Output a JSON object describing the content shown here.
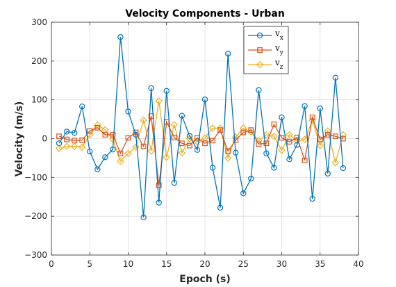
{
  "chart_data": {
    "type": "line",
    "title": "Velocity Components - Urban",
    "xlabel": "Epoch (s)",
    "ylabel": "Velocity (m/s)",
    "xlim": [
      0,
      40
    ],
    "ylim": [
      -300,
      300
    ],
    "xticks": [
      0,
      5,
      10,
      15,
      20,
      25,
      30,
      35,
      40
    ],
    "yticks": [
      -300,
      -200,
      -100,
      0,
      100,
      200,
      300
    ],
    "grid": true,
    "legend_position": "top-right",
    "x": [
      1,
      2,
      3,
      4,
      5,
      6,
      7,
      8,
      9,
      10,
      11,
      12,
      13,
      14,
      15,
      16,
      17,
      18,
      19,
      20,
      21,
      22,
      23,
      24,
      25,
      26,
      27,
      28,
      29,
      30,
      31,
      32,
      33,
      34,
      35,
      36,
      37,
      38
    ],
    "series": [
      {
        "name": "v",
        "subscript": "x",
        "color": "#0072BD",
        "marker": "circle",
        "values": [
          -12,
          18,
          15,
          83,
          -33,
          -79,
          -48,
          -28,
          262,
          70,
          10,
          -203,
          130,
          -165,
          123,
          -114,
          59,
          7,
          -29,
          101,
          -75,
          -178,
          219,
          -36,
          -141,
          -103,
          125,
          -38,
          -75,
          55,
          -53,
          -16,
          84,
          -155,
          78,
          -90,
          157,
          -76
        ]
      },
      {
        "name": "v",
        "subscript": "y",
        "color": "#D95319",
        "marker": "square",
        "values": [
          6,
          -2,
          -5,
          -4,
          20,
          28,
          10,
          10,
          -38,
          2,
          16,
          -20,
          58,
          -120,
          43,
          3,
          -12,
          -18,
          2,
          -12,
          -5,
          22,
          -32,
          -4,
          16,
          22,
          -14,
          -12,
          37,
          2,
          -8,
          3,
          -56,
          55,
          -2,
          10,
          6,
          0
        ]
      },
      {
        "name": "v",
        "subscript": "z",
        "color": "#EDB120",
        "marker": "diamond",
        "values": [
          -25,
          -20,
          -20,
          -22,
          10,
          35,
          23,
          -2,
          -58,
          -38,
          -22,
          48,
          -32,
          97,
          -48,
          36,
          -37,
          0,
          -8,
          2,
          27,
          27,
          -50,
          4,
          27,
          17,
          -5,
          10,
          6,
          -30,
          10,
          -6,
          -2,
          47,
          -18,
          20,
          -62,
          10
        ]
      }
    ]
  }
}
